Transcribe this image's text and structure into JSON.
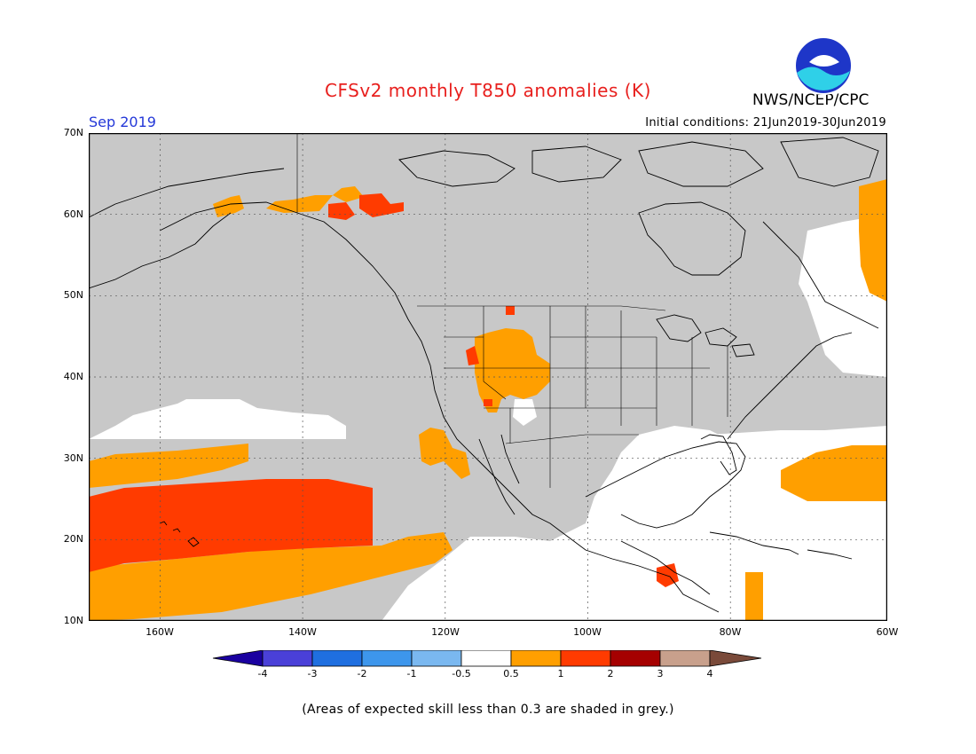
{
  "header": {
    "title": "CFSv2 monthly T850 anomalies (K)",
    "agency": "NWS/NCEP/CPC",
    "logo_text": "NOAA",
    "month": "Sep 2019",
    "initial_conditions": "Initial conditions: 21Jun2019-30Jun2019"
  },
  "map": {
    "lat_labels": [
      "70N",
      "60N",
      "50N",
      "40N",
      "30N",
      "20N",
      "10N"
    ],
    "lon_labels": [
      "160W",
      "140W",
      "120W",
      "100W",
      "80W",
      "60W"
    ],
    "extent": {
      "lon": [
        -172,
        -60
      ],
      "lat": [
        10,
        70
      ]
    },
    "grid": true,
    "colors": {
      "skill_mask": "#c8c8c8",
      "neutral": "#ffffff",
      "pos_0_5_1": "#ff9f00",
      "pos_1_2": "#ff3b00",
      "coast": "#000000"
    }
  },
  "colorbar": {
    "labels": [
      "-4",
      "-3",
      "-2",
      "-1",
      "-0.5",
      "0.5",
      "1",
      "2",
      "3",
      "4"
    ],
    "colors": [
      "#1a00a0",
      "#4a40d8",
      "#1f6fe0",
      "#3d96ec",
      "#7ab8f0",
      "#ffffff",
      "#ff9f00",
      "#ff3b00",
      "#a50000",
      "#c8a08c",
      "#7a4a3a"
    ]
  },
  "footer": {
    "skill_note": "(Areas of expected skill less than 0.3 are shaded in grey.)"
  }
}
